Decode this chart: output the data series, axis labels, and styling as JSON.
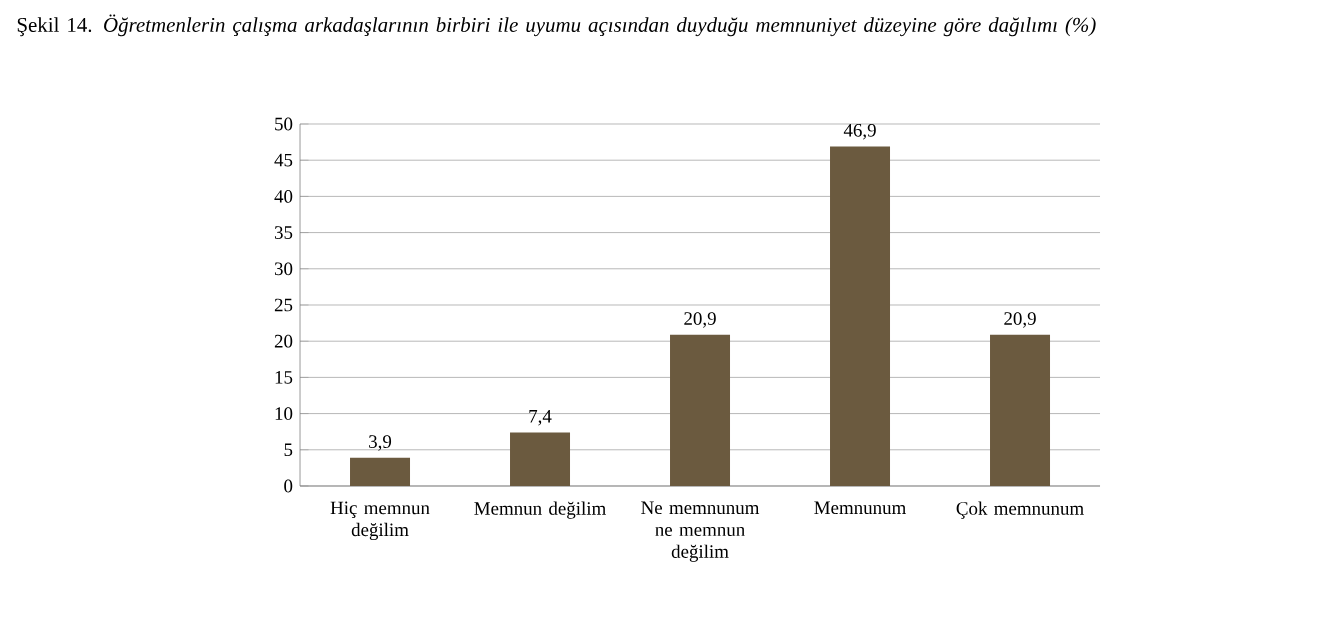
{
  "chart_data": {
    "type": "bar",
    "title": "Şekil 14. *Öğretmenlerin çalışma arkadaşlarının birbiri ile uyumu açısından duyduğu memnuniyet düzeyine göre dağılımı (%)*",
    "categories": [
      "Hiç memnun değilim",
      "Memnun değilim",
      "Ne memnunum ne memnun değilim",
      "Memnunum",
      "Çok memnunum"
    ],
    "values": [
      3.9,
      7.4,
      20.9,
      46.9,
      20.9
    ],
    "value_labels": [
      "3,9",
      "7,4",
      "20,9",
      "46,9",
      "20,9"
    ],
    "color": "#6b5a3f",
    "ylim": [
      0,
      50
    ],
    "yticks": [
      0,
      5,
      10,
      15,
      20,
      25,
      30,
      35,
      40,
      45,
      50
    ],
    "grid": "y"
  }
}
